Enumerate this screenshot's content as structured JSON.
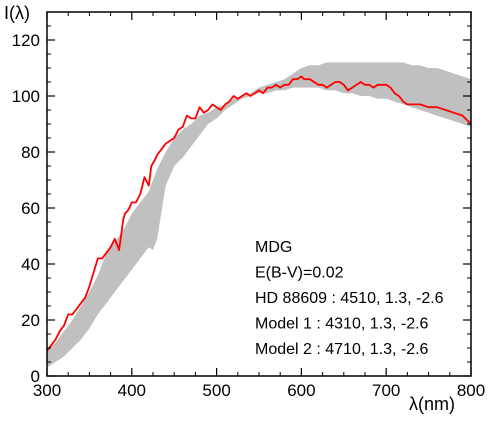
{
  "chart_data": {
    "type": "line",
    "title": "",
    "xlabel": "λ(nm)",
    "ylabel": "I(λ)",
    "xlim": [
      300,
      800
    ],
    "ylim": [
      0,
      130
    ],
    "x_ticks": [
      300,
      400,
      500,
      600,
      700,
      800
    ],
    "y_ticks": [
      0,
      20,
      40,
      60,
      80,
      100,
      120
    ],
    "x_tick_labels": [
      "300",
      "400",
      "500",
      "600",
      "700",
      "800"
    ],
    "y_tick_labels": [
      "0",
      "20",
      "40",
      "60",
      "80",
      "100",
      "120"
    ],
    "grid": false,
    "legend": "none",
    "colors": {
      "observed": "#ff0000",
      "model_band": "#c0c0c0"
    },
    "annotation_lines": [
      "MDG",
      "E(B-V)=0.02",
      "HD 88609 : 4510, 1.3, -2.6",
      "Model 1    : 4310, 1.3, -2.6",
      "Model 2    : 4710, 1.3, -2.6"
    ],
    "series": [
      {
        "type": "line",
        "x": [
          300,
          305,
          310,
          315,
          320,
          325,
          330,
          335,
          340,
          345,
          350,
          355,
          360,
          365,
          370,
          375,
          380,
          385,
          390,
          392,
          395,
          397,
          400,
          405,
          410,
          415,
          420,
          423,
          427,
          430,
          435,
          440,
          445,
          450,
          455,
          460,
          465,
          470,
          475,
          480,
          485,
          490,
          495,
          500,
          505,
          510,
          515,
          520,
          525,
          530,
          535,
          540,
          545,
          550,
          555,
          560,
          565,
          570,
          575,
          580,
          585,
          590,
          595,
          600,
          603,
          606,
          610,
          615,
          620,
          625,
          630,
          635,
          640,
          645,
          650,
          655,
          660,
          665,
          670,
          675,
          680,
          685,
          690,
          695,
          700,
          705,
          710,
          715,
          720,
          725,
          730,
          740,
          750,
          760,
          770,
          780,
          790,
          800
        ],
        "y": [
          9,
          11,
          13,
          16,
          18,
          22,
          22,
          24,
          26,
          28,
          32,
          37,
          42,
          42,
          44,
          46,
          49,
          45,
          56,
          58,
          59,
          60,
          62,
          62,
          65,
          71,
          68,
          75,
          77,
          79,
          81,
          83,
          84,
          85,
          88,
          89,
          93,
          92,
          92,
          96,
          94,
          95,
          97,
          96,
          95,
          97,
          98,
          100,
          99,
          100,
          101,
          100,
          101,
          102,
          101,
          103,
          103,
          104,
          103,
          104,
          104,
          106,
          106,
          107,
          106,
          106,
          106,
          105,
          104,
          104,
          103,
          104,
          105,
          105,
          104,
          102,
          103,
          104,
          105,
          104,
          104,
          103,
          104,
          104,
          104,
          103,
          101,
          100,
          98,
          97,
          97,
          97,
          96,
          96,
          95,
          94,
          93,
          90
        ]
      },
      {
        "type": "band",
        "x": [
          300,
          310,
          320,
          330,
          340,
          350,
          360,
          370,
          380,
          390,
          400,
          410,
          420,
          425,
          430,
          440,
          450,
          460,
          470,
          480,
          490,
          500,
          510,
          520,
          530,
          540,
          550,
          560,
          570,
          580,
          590,
          600,
          610,
          620,
          630,
          640,
          650,
          660,
          670,
          680,
          690,
          700,
          710,
          720,
          730,
          740,
          750,
          760,
          770,
          780,
          790,
          800
        ],
        "y_low": [
          3,
          5,
          7,
          10,
          13,
          17,
          22,
          26,
          30,
          34,
          38,
          42,
          46,
          45,
          49,
          68,
          75,
          78,
          82,
          86,
          90,
          92,
          95,
          97,
          99,
          100,
          101,
          101,
          102,
          102,
          103,
          103,
          103,
          103,
          102,
          102,
          101,
          101,
          100,
          100,
          99,
          99,
          98,
          97,
          96,
          95,
          94,
          93,
          92,
          91,
          90,
          89
        ],
        "y_high": [
          9,
          12,
          16,
          20,
          25,
          30,
          36,
          44,
          48,
          52,
          58,
          62,
          66,
          70,
          74,
          80,
          85,
          88,
          90,
          93,
          94,
          96,
          97,
          99,
          100,
          101,
          103,
          104,
          105,
          106,
          108,
          110,
          111,
          111,
          112,
          112,
          112,
          112,
          112,
          112,
          112,
          112,
          112,
          112,
          111,
          111,
          110,
          110,
          109,
          108,
          107,
          106
        ]
      }
    ]
  }
}
